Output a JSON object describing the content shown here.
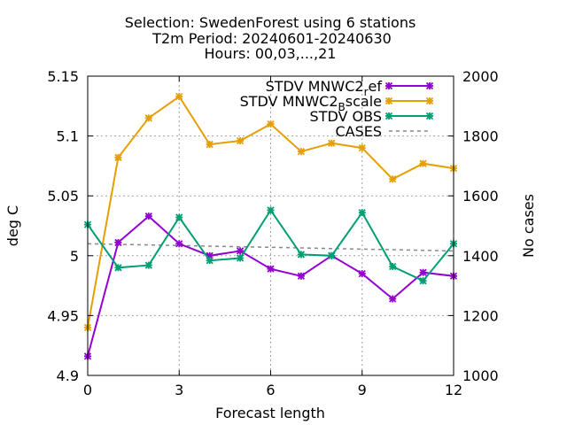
{
  "title": {
    "line1": "Selection: SwedenForest using     6 stations",
    "line2": "T2m   Period: 20240601-20240630",
    "line3": "Hours: 00,03,...,21"
  },
  "chart_data": {
    "type": "line",
    "xlabel": "Forecast length",
    "ylabel": "deg C",
    "y2label": "No cases",
    "xlim": [
      0,
      12
    ],
    "ylim": [
      4.9,
      5.15
    ],
    "y2lim": [
      1000,
      2000
    ],
    "x_ticks": [
      0,
      3,
      6,
      9,
      12
    ],
    "y_ticks": [
      4.9,
      4.95,
      5,
      5.05,
      5.1,
      5.15
    ],
    "y_tick_labels": [
      "4.9",
      "4.95",
      "5",
      "5.05",
      "5.1",
      "5.15"
    ],
    "y2_ticks": [
      1000,
      1200,
      1400,
      1600,
      1800,
      2000
    ],
    "grid": true,
    "legend_position": "top-right",
    "x": [
      0,
      1,
      2,
      3,
      4,
      5,
      6,
      7,
      8,
      9,
      10,
      11,
      12
    ],
    "series": [
      {
        "name": "STDV MNWC2_ref",
        "legend_main": "STDV MNWC2",
        "legend_sub": "r",
        "legend_tail": "ef",
        "color": "#9400d3",
        "axis": "left",
        "marker": "x",
        "values": [
          4.916,
          5.011,
          5.033,
          5.01,
          5.0,
          5.004,
          4.989,
          4.983,
          5.0,
          4.985,
          4.964,
          4.986,
          4.983
        ]
      },
      {
        "name": "STDV MNWC2_Bscale",
        "legend_main": "STDV MNWC2",
        "legend_sub": "B",
        "legend_tail": "scale",
        "color": "#e69f00",
        "axis": "left",
        "marker": "x",
        "values": [
          4.94,
          5.082,
          5.115,
          5.133,
          5.093,
          5.096,
          5.11,
          5.087,
          5.094,
          5.09,
          5.064,
          5.077,
          5.073
        ]
      },
      {
        "name": "STDV OBS",
        "legend_main": "STDV OBS",
        "legend_sub": "",
        "legend_tail": "",
        "color": "#009e73",
        "axis": "left",
        "marker": "x",
        "values": [
          5.026,
          4.99,
          4.992,
          5.032,
          4.996,
          4.998,
          5.038,
          5.001,
          5.0,
          5.036,
          4.991,
          4.979,
          5.01
        ]
      },
      {
        "name": "CASES",
        "legend_main": "CASES",
        "legend_sub": "",
        "legend_tail": "",
        "color": "#888888",
        "axis": "right",
        "marker": "none",
        "dashed": true,
        "values": [
          1440,
          1438,
          1436,
          1434,
          1432,
          1430,
          1428,
          1426,
          1424,
          1422,
          1420,
          1418,
          1416
        ]
      }
    ]
  }
}
